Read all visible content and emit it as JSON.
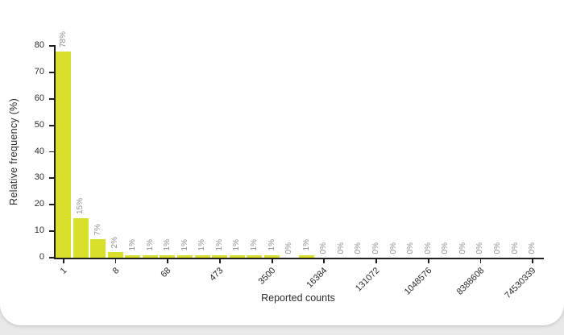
{
  "chart_data": {
    "type": "bar",
    "title": "",
    "xlabel": "Reported counts",
    "ylabel": "Relative frequency (%)",
    "ylim": [
      0,
      80
    ],
    "yticks": [
      0,
      10,
      20,
      30,
      40,
      50,
      60,
      70,
      80
    ],
    "grid": false,
    "legend": false,
    "bar_color": "#d9e029",
    "bar_label_color": "#8f8f8f",
    "axis_color": "#1f1f1f",
    "text_color": "#2b2b2b",
    "n_bars": 28,
    "values": [
      78,
      15,
      7,
      2,
      1,
      1,
      1,
      1,
      1,
      1,
      1,
      1,
      1,
      0,
      1,
      0,
      0,
      0,
      0,
      0,
      0,
      0,
      0,
      0,
      0,
      0,
      0,
      0
    ],
    "bar_labels": [
      "78%",
      "15%",
      "7%",
      "2%",
      "1%",
      "1%",
      "1%",
      "1%",
      "1%",
      "1%",
      "1%",
      "1%",
      "1%",
      "0%",
      "1%",
      "0%",
      "0%",
      "0%",
      "0%",
      "0%",
      "0%",
      "0%",
      "0%",
      "0%",
      "0%",
      "0%",
      "0%",
      "0%"
    ],
    "xtick_every": 3,
    "xtick_labels": [
      "1",
      "8",
      "68",
      "473",
      "3500",
      "16384",
      "131072",
      "1048576",
      "8388608",
      "74530339"
    ]
  }
}
